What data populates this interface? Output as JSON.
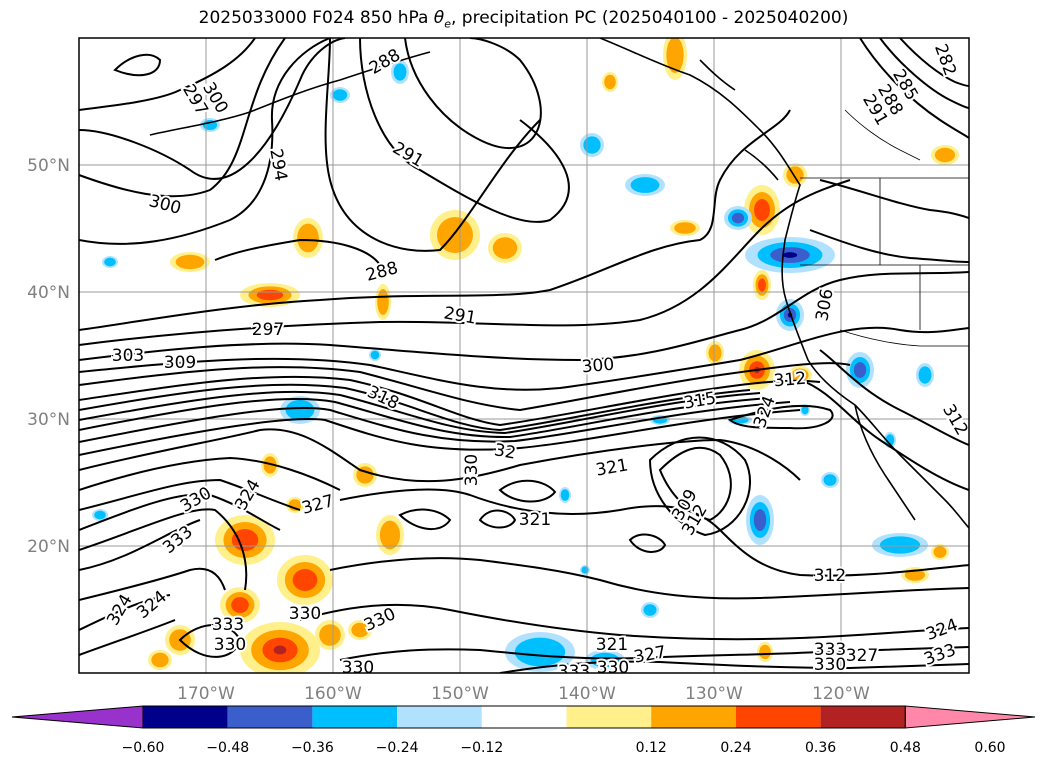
{
  "title": {
    "prefix": "2025033000 F024 850 hPa ",
    "theta": "θ",
    "theta_sub": "e",
    "suffix": ", precipitation PC (2025040100 - 2025040200)"
  },
  "axes": {
    "lat_labels": [
      "50°N",
      "40°N",
      "30°N",
      "20°N"
    ],
    "lon_labels": [
      "170°W",
      "160°W",
      "150°W",
      "140°W",
      "130°W",
      "120°W"
    ]
  },
  "contour_labels": [
    "288",
    "297",
    "300",
    "300",
    "294",
    "291",
    "288",
    "291",
    "297",
    "303",
    "309",
    "318",
    "300",
    "315",
    "312",
    "306",
    "282",
    "285",
    "288",
    "291",
    "312",
    "330",
    "321",
    "327",
    "321",
    "324",
    "330",
    "333",
    "324",
    "330",
    "333",
    "330",
    "327",
    "330",
    "321",
    "333",
    "330",
    "327",
    "333",
    "330",
    "324",
    "333",
    "312",
    "309",
    "312",
    "324",
    "330",
    "324",
    "32"
  ],
  "colorbar": {
    "ticks": [
      "−0.60",
      "−0.48",
      "−0.36",
      "−0.24",
      "−0.12",
      "0.12",
      "0.24",
      "0.36",
      "0.48",
      "0.60"
    ],
    "colors": [
      "#9932cc",
      "#00008b",
      "#3a5fcd",
      "#00bfff",
      "#b0e2ff",
      "#ffffff",
      "#fff08c",
      "#ffa500",
      "#ff4500",
      "#b22222",
      "#ff88aa"
    ]
  },
  "colors": {
    "orange": "#ffa500",
    "yellow": "#fff08c",
    "red": "#ff4500",
    "darkred": "#b22222",
    "cyan": "#00bfff",
    "lightblue": "#b0e2ff",
    "blue": "#3a5fcd",
    "navy": "#00008b"
  }
}
